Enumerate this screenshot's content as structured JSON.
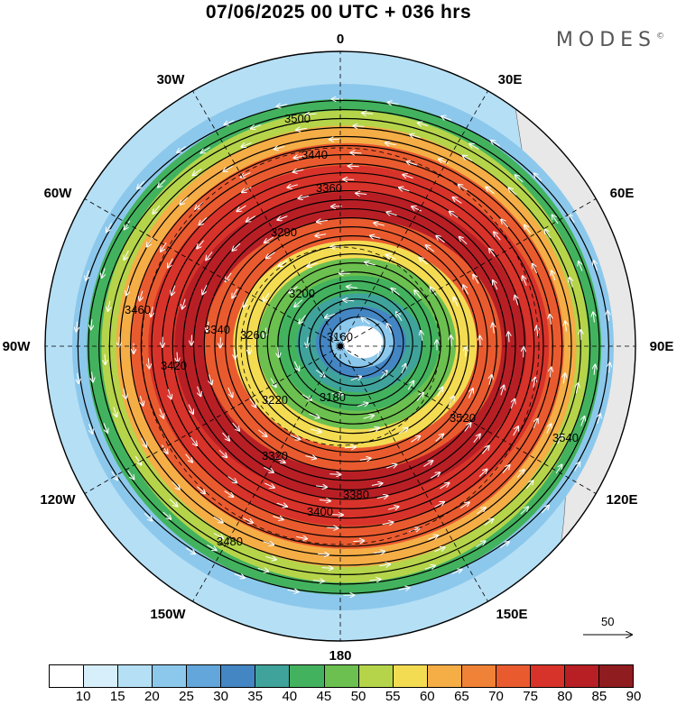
{
  "title": "07/06/2025  00 UTC  + 036 hrs",
  "brand": "MODES",
  "brand_mark": "©",
  "longitude_labels": [
    "0",
    "30E",
    "60E",
    "90E",
    "120E",
    "150E",
    "180",
    "150W",
    "120W",
    "90W",
    "60W",
    "30W"
  ],
  "contour_labels": [
    "3160",
    "3180",
    "3200",
    "3220",
    "3260",
    "3290",
    "3320",
    "3340",
    "3360",
    "3380",
    "3400",
    "3420",
    "3440",
    "3460",
    "3480",
    "3500",
    "3520",
    "3540"
  ],
  "reference_vector": {
    "value": "50",
    "icon": "arrow-right-icon"
  },
  "colorbar": {
    "colors": [
      "#ffffff",
      "#d6effa",
      "#b5dff5",
      "#8cc8ec",
      "#62a6db",
      "#4486c3",
      "#3fa39b",
      "#43b25e",
      "#6cc04f",
      "#b5d44a",
      "#f4dc52",
      "#f5ad46",
      "#ef8236",
      "#e95b2f",
      "#d8332a",
      "#b81f25",
      "#8f1c1f"
    ],
    "ticks": [
      "10",
      "15",
      "20",
      "25",
      "30",
      "35",
      "40",
      "45",
      "50",
      "55",
      "60",
      "65",
      "70",
      "75",
      "80",
      "85",
      "90"
    ]
  }
}
